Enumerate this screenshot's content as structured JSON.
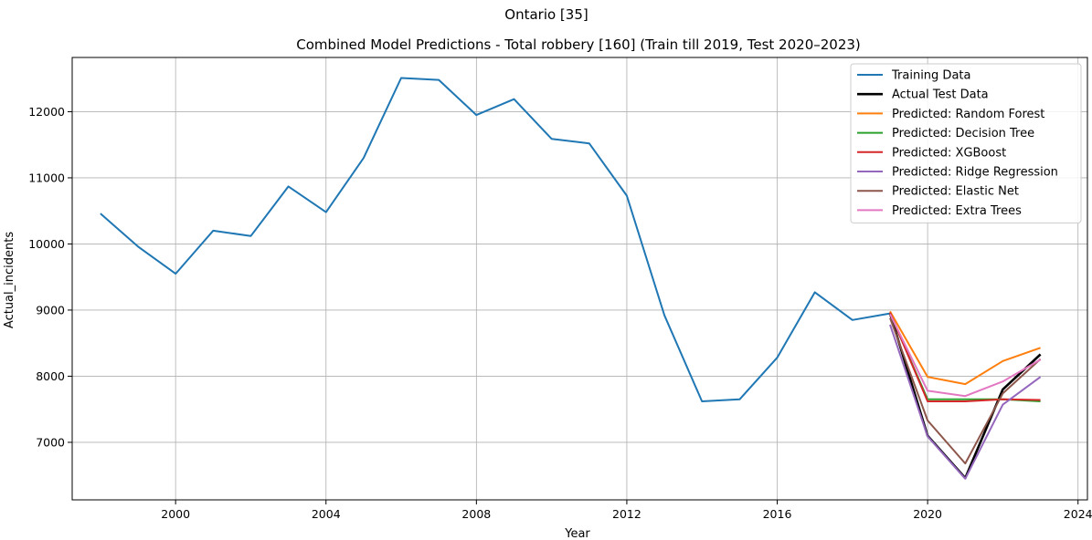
{
  "chart_data": {
    "type": "line",
    "suptitle": "Ontario [35]",
    "title": "Combined Model Predictions - Total robbery [160] (Train till 2019, Test 2020–2023)",
    "xlabel": "Year",
    "ylabel": "Actual_incidents",
    "xlim": [
      1997.25,
      2024.25
    ],
    "ylim": [
      6130,
      12820
    ],
    "xticks": [
      2000,
      2004,
      2008,
      2012,
      2016,
      2020,
      2024
    ],
    "yticks": [
      7000,
      8000,
      9000,
      10000,
      11000,
      12000
    ],
    "grid": true,
    "legend_position": "top-right",
    "series": [
      {
        "name": "Training Data",
        "color": "#1f77b4",
        "width": 2,
        "x": [
          1998,
          1999,
          2000,
          2001,
          2002,
          2003,
          2004,
          2005,
          2006,
          2007,
          2008,
          2009,
          2010,
          2011,
          2012,
          2013,
          2014,
          2015,
          2016,
          2017,
          2018,
          2019
        ],
        "y": [
          10460,
          9960,
          9550,
          10200,
          10120,
          10870,
          10480,
          11300,
          12510,
          12480,
          11950,
          12190,
          11590,
          11520,
          10730,
          8920,
          7620,
          7650,
          8280,
          9270,
          8850,
          8950
        ]
      },
      {
        "name": "Actual Test Data",
        "color": "#000000",
        "width": 2.6,
        "x": [
          2019,
          2020,
          2021,
          2022,
          2023
        ],
        "y": [
          8950,
          7100,
          6460,
          7800,
          8330
        ]
      },
      {
        "name": "Predicted: Random Forest",
        "color": "#ff7f0e",
        "width": 2,
        "x": [
          2019,
          2020,
          2021,
          2022,
          2023
        ],
        "y": [
          8980,
          7990,
          7880,
          8230,
          8430
        ]
      },
      {
        "name": "Predicted: Decision Tree",
        "color": "#2ca02c",
        "width": 2,
        "x": [
          2019,
          2020,
          2021,
          2022,
          2023
        ],
        "y": [
          8950,
          7650,
          7650,
          7650,
          7620
        ]
      },
      {
        "name": "Predicted: XGBoost",
        "color": "#d62728",
        "width": 2,
        "x": [
          2019,
          2020,
          2021,
          2022,
          2023
        ],
        "y": [
          8960,
          7620,
          7620,
          7650,
          7640
        ]
      },
      {
        "name": "Predicted: Ridge Regression",
        "color": "#9467bd",
        "width": 2,
        "x": [
          2019,
          2020,
          2021,
          2022,
          2023
        ],
        "y": [
          8780,
          7090,
          6450,
          7570,
          7990
        ]
      },
      {
        "name": "Predicted: Elastic Net",
        "color": "#8c564b",
        "width": 2,
        "x": [
          2019,
          2020,
          2021,
          2022,
          2023
        ],
        "y": [
          8880,
          7330,
          6680,
          7740,
          8260
        ]
      },
      {
        "name": "Predicted: Extra Trees",
        "color": "#e377c2",
        "width": 2,
        "x": [
          2019,
          2020,
          2021,
          2022,
          2023
        ],
        "y": [
          8940,
          7780,
          7700,
          7920,
          8250
        ]
      }
    ]
  }
}
